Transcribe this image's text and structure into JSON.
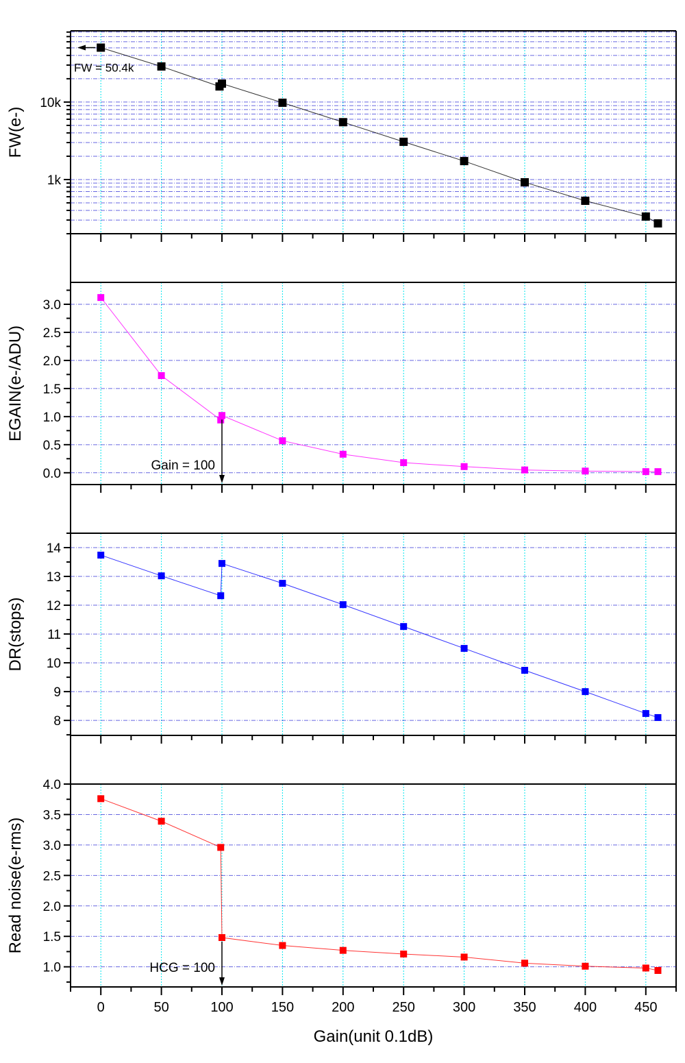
{
  "colors": {
    "fw": "#000000",
    "egain": "#ff00ff",
    "dr": "#0000ff",
    "noise": "#ff0000",
    "grid_h": "#0000cc",
    "grid_v": "#00e5ee"
  },
  "x_axis": {
    "label": "Gain(unit 0.1dB)",
    "ticks": [
      0,
      50,
      100,
      150,
      200,
      250,
      300,
      350,
      400,
      450
    ],
    "xlim": [
      -25,
      475
    ]
  },
  "chart_data": [
    {
      "type": "line",
      "ylabel": "FW(e-)",
      "yscale": "log",
      "ylim": [
        200,
        83000
      ],
      "yticks": [
        {
          "v": 1000,
          "label": "1k"
        },
        {
          "v": 10000,
          "label": "10k"
        }
      ],
      "color_key": "fw",
      "x": [
        0,
        50,
        98,
        100,
        150,
        200,
        250,
        300,
        350,
        400,
        450,
        460
      ],
      "y": [
        50400,
        28800,
        15900,
        17300,
        9800,
        5500,
        3070,
        1730,
        922,
        532,
        333,
        272
      ],
      "annotation": {
        "text": "FW = 50.4k",
        "arrow": "left",
        "at_x": 0
      }
    },
    {
      "type": "line",
      "ylabel": "EGAIN(e-/ADU)",
      "yscale": "linear",
      "ylim": [
        -0.21,
        3.39
      ],
      "yticks": [
        {
          "v": 0,
          "label": "0.0"
        },
        {
          "v": 0.5,
          "label": "0.5"
        },
        {
          "v": 1,
          "label": "1.0"
        },
        {
          "v": 1.5,
          "label": "1.5"
        },
        {
          "v": 2,
          "label": "2.0"
        },
        {
          "v": 2.5,
          "label": "2.5"
        },
        {
          "v": 3,
          "label": "3.0"
        }
      ],
      "color_key": "egain",
      "x": [
        0,
        50,
        99,
        100,
        150,
        200,
        250,
        300,
        350,
        400,
        450,
        460
      ],
      "y": [
        3.12,
        1.73,
        0.94,
        1.02,
        0.57,
        0.33,
        0.18,
        0.11,
        0.05,
        0.03,
        0.02,
        0.02
      ],
      "annotation": {
        "text": "Gain = 100",
        "arrow": "down",
        "at_x": 100
      }
    },
    {
      "type": "line",
      "ylabel": "DR(stops)",
      "yscale": "linear",
      "ylim": [
        7.48,
        14.5
      ],
      "yticks": [
        {
          "v": 8,
          "label": "8"
        },
        {
          "v": 9,
          "label": "9"
        },
        {
          "v": 10,
          "label": "10"
        },
        {
          "v": 11,
          "label": "11"
        },
        {
          "v": 12,
          "label": "12"
        },
        {
          "v": 13,
          "label": "13"
        },
        {
          "v": 14,
          "label": "14"
        }
      ],
      "color_key": "dr",
      "x": [
        0,
        50,
        99,
        100,
        150,
        200,
        250,
        300,
        350,
        400,
        450,
        460
      ],
      "y": [
        13.74,
        13.02,
        12.33,
        13.45,
        12.76,
        12.02,
        11.26,
        10.5,
        9.74,
        9.0,
        8.24,
        8.1
      ]
    },
    {
      "type": "line",
      "ylabel": "Read noise(e-rms)",
      "yscale": "linear",
      "ylim": [
        0.67,
        4.0
      ],
      "yticks": [
        {
          "v": 1,
          "label": "1.0"
        },
        {
          "v": 1.5,
          "label": "1.5"
        },
        {
          "v": 2,
          "label": "2.0"
        },
        {
          "v": 2.5,
          "label": "2.5"
        },
        {
          "v": 3,
          "label": "3.0"
        },
        {
          "v": 3.5,
          "label": "3.5"
        },
        {
          "v": 4,
          "label": "4.0"
        }
      ],
      "color_key": "noise",
      "x": [
        0,
        50,
        99,
        100,
        150,
        200,
        250,
        300,
        350,
        400,
        450,
        460
      ],
      "y": [
        3.76,
        3.39,
        2.96,
        1.48,
        1.35,
        1.27,
        1.21,
        1.16,
        1.06,
        1.01,
        0.98,
        0.94
      ],
      "annotation": {
        "text": "HCG = 100",
        "arrow": "down",
        "at_x": 100
      }
    }
  ]
}
